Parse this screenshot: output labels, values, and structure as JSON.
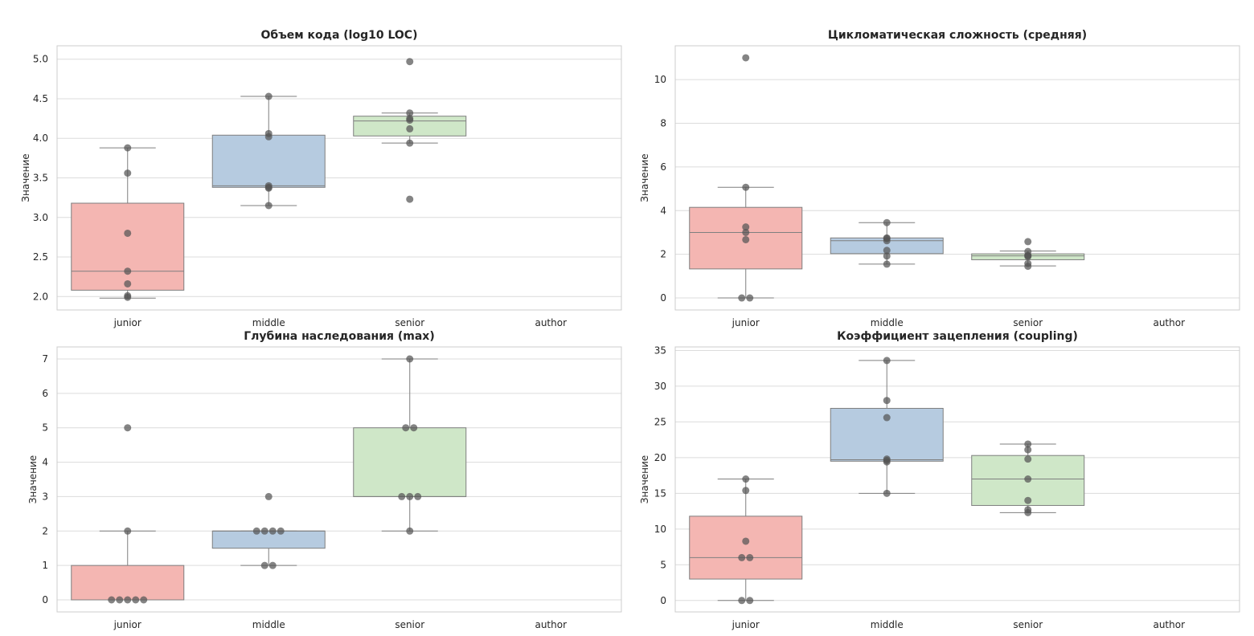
{
  "suptitle": "",
  "chart_data": [
    {
      "type": "box",
      "title": "Объем кода (log10 LOC)",
      "ylabel": "Значение",
      "categories": [
        "junior",
        "middle",
        "senior",
        "author"
      ],
      "ylim": [
        1.83,
        5.17
      ],
      "yticks": [
        2.0,
        2.5,
        3.0,
        3.5,
        4.0,
        4.5,
        5.0
      ],
      "ytick_labels": [
        "2.0",
        "2.5",
        "3.0",
        "3.5",
        "4.0",
        "4.5",
        "5.0"
      ],
      "boxes": [
        {
          "category": "junior",
          "whislo": 1.98,
          "q1": 2.08,
          "med": 2.32,
          "q3": 3.18,
          "whishi": 3.88,
          "color": "#f4b6b2"
        },
        {
          "category": "middle",
          "whislo": 3.15,
          "q1": 3.38,
          "med": 3.4,
          "q3": 4.04,
          "whishi": 4.53,
          "color": "#b6cbe0"
        },
        {
          "category": "senior",
          "whislo": 3.94,
          "q1": 4.03,
          "med": 4.22,
          "q3": 4.28,
          "whishi": 4.32,
          "color": "#cfe7c8"
        }
      ],
      "points": [
        {
          "category": "junior",
          "values": [
            3.88,
            3.56,
            2.8,
            2.32,
            2.16,
            2.01,
            1.99
          ]
        },
        {
          "category": "middle",
          "values": [
            4.53,
            4.06,
            4.02,
            3.4,
            3.38,
            3.37,
            3.15
          ]
        },
        {
          "category": "senior",
          "values": [
            4.97,
            4.32,
            4.25,
            4.23,
            4.12,
            3.94,
            3.23
          ]
        }
      ]
    },
    {
      "type": "box",
      "title": "Цикломатическая сложность (средняя)",
      "ylabel": "Значение",
      "categories": [
        "junior",
        "middle",
        "senior",
        "author"
      ],
      "ylim": [
        -0.55,
        11.55
      ],
      "yticks": [
        0,
        2,
        4,
        6,
        8,
        10
      ],
      "ytick_labels": [
        "0",
        "2",
        "4",
        "6",
        "8",
        "10"
      ],
      "boxes": [
        {
          "category": "junior",
          "whislo": 0.0,
          "q1": 1.33,
          "med": 3.0,
          "q3": 4.15,
          "whishi": 5.07,
          "color": "#f4b6b2"
        },
        {
          "category": "middle",
          "whislo": 1.55,
          "q1": 2.03,
          "med": 2.62,
          "q3": 2.75,
          "whishi": 3.45,
          "color": "#b6cbe0"
        },
        {
          "category": "senior",
          "whislo": 1.47,
          "q1": 1.75,
          "med": 1.93,
          "q3": 2.02,
          "whishi": 2.15,
          "color": "#cfe7c8"
        }
      ],
      "points": [
        {
          "category": "junior",
          "values": [
            11.0,
            5.07,
            3.25,
            3.0,
            2.67,
            0.0,
            0.0
          ]
        },
        {
          "category": "middle",
          "values": [
            3.45,
            2.75,
            2.72,
            2.62,
            2.18,
            1.92,
            1.55
          ]
        },
        {
          "category": "senior",
          "values": [
            2.58,
            2.13,
            1.95,
            1.93,
            1.9,
            1.58,
            1.45
          ]
        }
      ]
    },
    {
      "type": "box",
      "title": "Глубина наследования (max)",
      "ylabel": "Значение",
      "categories": [
        "junior",
        "middle",
        "senior",
        "author"
      ],
      "ylim": [
        -0.35,
        7.35
      ],
      "yticks": [
        0,
        1,
        2,
        3,
        4,
        5,
        6,
        7
      ],
      "ytick_labels": [
        "0",
        "1",
        "2",
        "3",
        "4",
        "5",
        "6",
        "7"
      ],
      "boxes": [
        {
          "category": "junior",
          "whislo": 0,
          "q1": 0,
          "med": 0,
          "q3": 1,
          "whishi": 2,
          "color": "#f4b6b2"
        },
        {
          "category": "middle",
          "whislo": 1,
          "q1": 1.5,
          "med": 2,
          "q3": 2,
          "whishi": 2,
          "color": "#b6cbe0"
        },
        {
          "category": "senior",
          "whislo": 2,
          "q1": 3,
          "med": 3,
          "q3": 5,
          "whishi": 7,
          "color": "#cfe7c8"
        }
      ],
      "points": [
        {
          "category": "junior",
          "values": [
            5,
            2,
            0,
            0,
            0,
            0,
            0
          ]
        },
        {
          "category": "middle",
          "values": [
            3,
            2,
            2,
            2,
            2,
            1,
            1
          ]
        },
        {
          "category": "senior",
          "values": [
            7,
            5,
            5,
            3,
            3,
            3,
            2
          ]
        }
      ]
    },
    {
      "type": "box",
      "title": "Коэффициент зацепления (coupling)",
      "ylabel": "Значение",
      "categories": [
        "junior",
        "middle",
        "senior",
        "author"
      ],
      "ylim": [
        -1.6,
        35.5
      ],
      "yticks": [
        0,
        5,
        10,
        15,
        20,
        25,
        30,
        35
      ],
      "ytick_labels": [
        "0",
        "5",
        "10",
        "15",
        "20",
        "25",
        "30",
        "35"
      ],
      "boxes": [
        {
          "category": "junior",
          "whislo": 0,
          "q1": 3,
          "med": 6,
          "q3": 11.8,
          "whishi": 17,
          "color": "#f4b6b2"
        },
        {
          "category": "middle",
          "whislo": 15,
          "q1": 19.5,
          "med": 19.7,
          "q3": 26.9,
          "whishi": 33.6,
          "color": "#b6cbe0"
        },
        {
          "category": "senior",
          "whislo": 12.3,
          "q1": 13.3,
          "med": 17.0,
          "q3": 20.3,
          "whishi": 21.9,
          "color": "#cfe7c8"
        }
      ],
      "points": [
        {
          "category": "junior",
          "values": [
            17.0,
            15.4,
            8.3,
            6.0,
            6.0,
            0.0,
            0.0
          ]
        },
        {
          "category": "middle",
          "values": [
            33.6,
            28.0,
            25.6,
            19.8,
            19.6,
            19.4,
            15.0
          ]
        },
        {
          "category": "senior",
          "values": [
            21.9,
            21.1,
            19.8,
            17.0,
            14.0,
            12.7,
            12.3
          ]
        }
      ]
    }
  ]
}
